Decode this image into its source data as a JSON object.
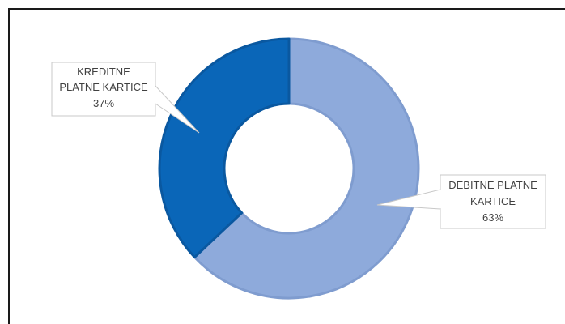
{
  "chart_data": {
    "type": "donut",
    "slices": [
      {
        "label_lines": [
          "KREDITNE",
          "PLATNE KARTICE"
        ],
        "percent_text": "37%",
        "value": 37,
        "color": "#0a66b8"
      },
      {
        "label_lines": [
          "DEBITNE PLATNE",
          "KARTICE"
        ],
        "percent_text": "63%",
        "value": 63,
        "color": "#8eaadb"
      }
    ]
  }
}
